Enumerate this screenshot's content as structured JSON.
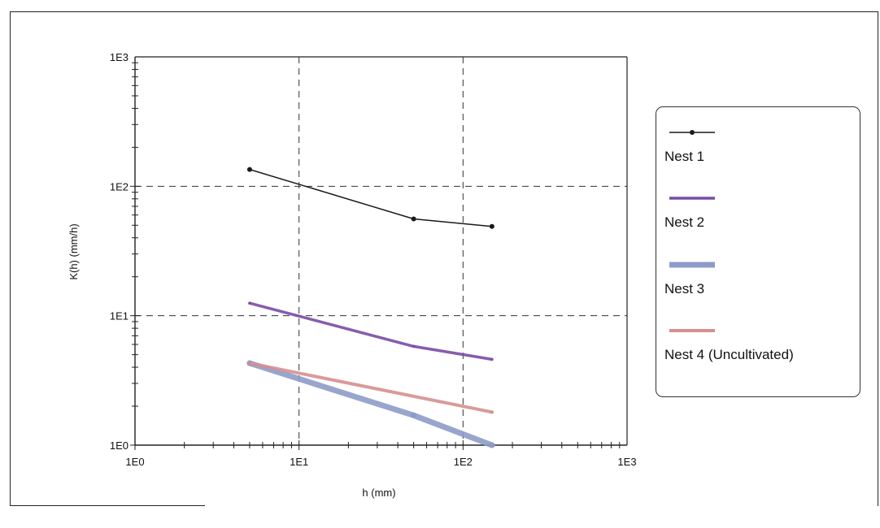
{
  "chart_data": {
    "type": "line",
    "xlabel": "h (mm)",
    "ylabel": "K(h) (mm/h)",
    "x_scale": "log",
    "y_scale": "log",
    "xlim": [
      1,
      1000
    ],
    "ylim": [
      1,
      1000
    ],
    "x_tick_labels": [
      "1E0",
      "1E1",
      "1E2",
      "1E3"
    ],
    "y_tick_labels": [
      "1E0",
      "1E1",
      "1E2",
      "1E3"
    ],
    "x_ticks": [
      1,
      10,
      100,
      1000
    ],
    "y_ticks": [
      1,
      10,
      100,
      1000
    ],
    "grid": "dashed at major ticks",
    "legend_position": "right",
    "series": [
      {
        "name": "Nest 1",
        "color": "#1a1a1a",
        "style": "thin line with dot markers",
        "x": [
          5,
          50,
          150
        ],
        "y": [
          135,
          56,
          49
        ]
      },
      {
        "name": "Nest 2",
        "color": "#7a4aa6",
        "style": "medium line",
        "x": [
          5,
          50,
          150
        ],
        "y": [
          12.5,
          5.8,
          4.6
        ]
      },
      {
        "name": "Nest 3",
        "color": "#8d9bc8",
        "style": "thick line",
        "x": [
          5,
          50,
          150
        ],
        "y": [
          4.3,
          1.7,
          1.0
        ]
      },
      {
        "name": "Nest 4 (Uncultivated)",
        "color": "#d68f8f",
        "style": "medium line",
        "x": [
          5,
          150
        ],
        "y": [
          4.3,
          1.8
        ]
      }
    ]
  }
}
